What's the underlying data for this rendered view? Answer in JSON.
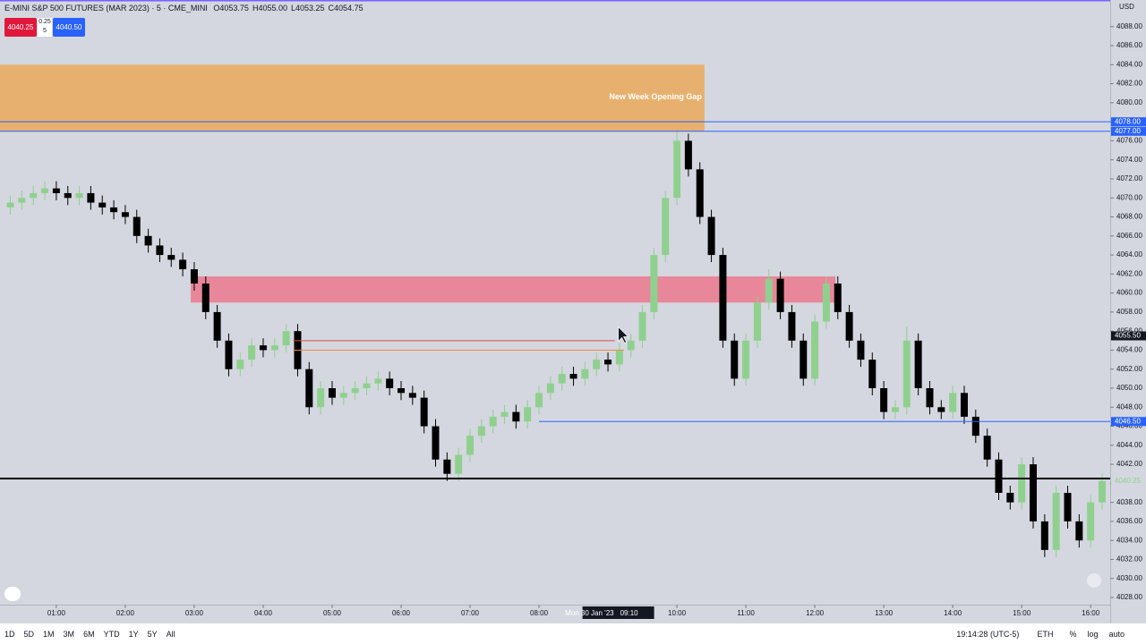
{
  "header": {
    "symbol": "E-MINI S&P 500 FUTURES (MAR 2023) · 5 · CME_MINI",
    "ohlc": [
      "O4053.75",
      "H4055.00",
      "L4053.25",
      "C4054.75"
    ],
    "currency": "USD"
  },
  "trade": {
    "sell": "4040.25",
    "spread": "0.25",
    "qty": "5",
    "buy": "4040.50"
  },
  "chart_data": {
    "type": "candlestick",
    "up_color": "#8fd08f",
    "down_color": "#000000",
    "xlim": [
      11,
      977
    ],
    "ylim": [
      27.25,
      90.8
    ],
    "ylim_offset": 4000,
    "xticks": [
      {
        "value": 60,
        "label": "01:00"
      },
      {
        "value": 120,
        "label": "02:00"
      },
      {
        "value": 180,
        "label": "03:00"
      },
      {
        "value": 240,
        "label": "04:00"
      },
      {
        "value": 300,
        "label": "05:00"
      },
      {
        "value": 360,
        "label": "06:00"
      },
      {
        "value": 420,
        "label": "07:00"
      },
      {
        "value": 480,
        "label": "08:00"
      },
      {
        "value": 600,
        "label": "10:00"
      },
      {
        "value": 660,
        "label": "11:00"
      },
      {
        "value": 720,
        "label": "12:00"
      },
      {
        "value": 780,
        "label": "13:00"
      },
      {
        "value": 840,
        "label": "14:00"
      },
      {
        "value": 900,
        "label": "15:00"
      },
      {
        "value": 960,
        "label": "16:00"
      }
    ],
    "yticks": [
      {
        "value": 4028,
        "label": "4028.00"
      },
      {
        "value": 4030,
        "label": "4030.00"
      },
      {
        "value": 4032,
        "label": "4032.00"
      },
      {
        "value": 4034,
        "label": "4034.00"
      },
      {
        "value": 4036,
        "label": "4036.00"
      },
      {
        "value": 4038,
        "label": "4038.00"
      },
      {
        "value": 4040,
        "label": "4040.00"
      },
      {
        "value": 4042,
        "label": "4042.00"
      },
      {
        "value": 4044,
        "label": "4044.00"
      },
      {
        "value": 4046,
        "label": "4046.00"
      },
      {
        "value": 4048,
        "label": "4048.00"
      },
      {
        "value": 4050,
        "label": "4050.00"
      },
      {
        "value": 4052,
        "label": "4052.00"
      },
      {
        "value": 4054,
        "label": "4054.00"
      },
      {
        "value": 4056,
        "label": "4056.00"
      },
      {
        "value": 4058,
        "label": "4058.00"
      },
      {
        "value": 4060,
        "label": "4060.00"
      },
      {
        "value": 4062,
        "label": "4062.00"
      },
      {
        "value": 4064,
        "label": "4064.00"
      },
      {
        "value": 4066,
        "label": "4066.00"
      },
      {
        "value": 4068,
        "label": "4068.00"
      },
      {
        "value": 4070,
        "label": "4070.00"
      },
      {
        "value": 4072,
        "label": "4072.00"
      },
      {
        "value": 4074,
        "label": "4074.00"
      },
      {
        "value": 4076,
        "label": "4076.00"
      },
      {
        "value": 4078,
        "label": "4078.00"
      },
      {
        "value": 4080,
        "label": "4080.00"
      },
      {
        "value": 4082,
        "label": "4082.00"
      },
      {
        "value": 4084,
        "label": "4084.00"
      },
      {
        "value": 4086,
        "label": "4086.00"
      },
      {
        "value": 4088,
        "label": "4088.00"
      }
    ],
    "zones": [
      {
        "top": 4084,
        "bottom": 4077,
        "from": 11,
        "to": 624,
        "color": "#e8b06e",
        "label": "New Week Opening Gap"
      },
      {
        "top": 4061.75,
        "bottom": 4059,
        "from": 177,
        "to": 738,
        "color": "#e8879a"
      }
    ],
    "hlines": [
      {
        "value": 4078,
        "label": "4078.00",
        "color": "#2962ff",
        "from": 11,
        "to": 977
      },
      {
        "value": 4077,
        "label": "4077.00",
        "color": "#2962ff",
        "from": 11,
        "to": 977
      },
      {
        "value": 4046.5,
        "label": "4046.50",
        "color": "#2962ff",
        "from": 480,
        "to": 977
      },
      {
        "value": 4055,
        "color": "#e0503a",
        "from": 266,
        "to": 546
      },
      {
        "value": 4054,
        "color": "#f08a3c",
        "from": 266,
        "to": 554
      },
      {
        "value": 4040.5,
        "color": "#000000",
        "from": 11,
        "to": 977,
        "width": 2
      }
    ],
    "last_price": {
      "value": 4040.25,
      "label": "4040.25"
    },
    "crosshair": {
      "price": {
        "value": 4055.5,
        "label": "4055.50"
      },
      "time": {
        "value": 549,
        "label": "09:10",
        "date": "Mon 30 Jan '23"
      }
    },
    "candles": [
      [
        20,
        4069,
        4070.25,
        4068.25,
        4069.5
      ],
      [
        30,
        4069.5,
        4070.75,
        4068.75,
        4070
      ],
      [
        40,
        4070,
        4071.25,
        4069.25,
        4070.5
      ],
      [
        50,
        4070.5,
        4071.75,
        4069.75,
        4071
      ],
      [
        60,
        4071,
        4071.75,
        4069.75,
        4070.5
      ],
      [
        70,
        4070.5,
        4071.25,
        4069.25,
        4070
      ],
      [
        80,
        4070,
        4071.25,
        4069.25,
        4070.5
      ],
      [
        90,
        4070.5,
        4071.25,
        4068.75,
        4069.5
      ],
      [
        100,
        4069.5,
        4070.25,
        4068.25,
        4069
      ],
      [
        110,
        4069,
        4069.75,
        4067.75,
        4068.5
      ],
      [
        120,
        4068.5,
        4069.25,
        4067.25,
        4068
      ],
      [
        130,
        4068,
        4068.75,
        4065.25,
        4066
      ],
      [
        140,
        4066,
        4066.75,
        4064.25,
        4065
      ],
      [
        150,
        4065,
        4065.75,
        4063.25,
        4064
      ],
      [
        160,
        4064,
        4064.75,
        4062.75,
        4063.5
      ],
      [
        170,
        4063.5,
        4064.25,
        4061.75,
        4062.5
      ],
      [
        180,
        4062.5,
        4063.25,
        4060.25,
        4061
      ],
      [
        190,
        4061,
        4061.75,
        4057.25,
        4058
      ],
      [
        200,
        4058,
        4058.75,
        4054.25,
        4055
      ],
      [
        210,
        4055,
        4055.75,
        4051.25,
        4052
      ],
      [
        220,
        4052,
        4053.75,
        4051.25,
        4053
      ],
      [
        230,
        4053,
        4055.25,
        4052.25,
        4054.5
      ],
      [
        240,
        4054.5,
        4055.25,
        4053.25,
        4054
      ],
      [
        250,
        4054,
        4055.25,
        4053.25,
        4054.5
      ],
      [
        260,
        4054.5,
        4056.75,
        4053.75,
        4056
      ],
      [
        270,
        4056,
        4056.75,
        4051.25,
        4052
      ],
      [
        280,
        4052,
        4052.75,
        4047.25,
        4048
      ],
      [
        290,
        4048,
        4050.75,
        4047.25,
        4050
      ],
      [
        300,
        4050,
        4050.75,
        4048.25,
        4049
      ],
      [
        310,
        4049,
        4050.25,
        4048.25,
        4049.5
      ],
      [
        320,
        4049.5,
        4050.75,
        4048.75,
        4050
      ],
      [
        330,
        4050,
        4051.25,
        4049.25,
        4050.5
      ],
      [
        340,
        4050.5,
        4051.75,
        4049.75,
        4051
      ],
      [
        350,
        4051,
        4051.75,
        4049.25,
        4050
      ],
      [
        360,
        4050,
        4050.75,
        4048.75,
        4049.5
      ],
      [
        370,
        4049.5,
        4050.25,
        4048.25,
        4049
      ],
      [
        380,
        4049,
        4049.75,
        4045.25,
        4046
      ],
      [
        390,
        4046,
        4046.75,
        4041.75,
        4042.5
      ],
      [
        400,
        4042.5,
        4043.25,
        4040.25,
        4041
      ],
      [
        410,
        4041,
        4043.75,
        4040.25,
        4043
      ],
      [
        420,
        4043,
        4045.75,
        4042.25,
        4045
      ],
      [
        430,
        4045,
        4046.75,
        4044.25,
        4046
      ],
      [
        440,
        4046,
        4047.75,
        4045.25,
        4047
      ],
      [
        450,
        4047,
        4048.25,
        4046.25,
        4047.5
      ],
      [
        460,
        4047.5,
        4048.25,
        4045.75,
        4046.5
      ],
      [
        470,
        4046.5,
        4048.75,
        4045.75,
        4048
      ],
      [
        480,
        4048,
        4050.25,
        4047.25,
        4049.5
      ],
      [
        490,
        4049.5,
        4051.25,
        4048.75,
        4050.5
      ],
      [
        500,
        4050.5,
        4052.25,
        4049.75,
        4051.5
      ],
      [
        510,
        4051.5,
        4052.25,
        4050.25,
        4051
      ],
      [
        520,
        4051,
        4052.75,
        4050.25,
        4052
      ],
      [
        530,
        4052,
        4053.75,
        4051.25,
        4053
      ],
      [
        540,
        4053,
        4053.75,
        4051.75,
        4052.5
      ],
      [
        550,
        4052.5,
        4054.75,
        4051.75,
        4054
      ],
      [
        560,
        4054,
        4055.75,
        4053.25,
        4055
      ],
      [
        570,
        4055,
        4058.75,
        4054.25,
        4058
      ],
      [
        580,
        4058,
        4064.75,
        4057.25,
        4064
      ],
      [
        590,
        4064,
        4070.75,
        4063.25,
        4070
      ],
      [
        600,
        4070,
        4077,
        4069.25,
        4076
      ],
      [
        610,
        4076,
        4076.75,
        4072.25,
        4073
      ],
      [
        620,
        4073,
        4073.75,
        4067.25,
        4068
      ],
      [
        630,
        4068,
        4068.75,
        4063.25,
        4064
      ],
      [
        640,
        4064,
        4064.75,
        4054.25,
        4055
      ],
      [
        650,
        4055,
        4055.75,
        4050.25,
        4051
      ],
      [
        660,
        4051,
        4055.75,
        4050.25,
        4055
      ],
      [
        670,
        4055,
        4059.75,
        4054.25,
        4059
      ],
      [
        680,
        4059,
        4062.5,
        4058.25,
        4061.5
      ],
      [
        690,
        4061.5,
        4062.25,
        4057.25,
        4058
      ],
      [
        700,
        4058,
        4058.75,
        4054.25,
        4055
      ],
      [
        710,
        4055,
        4055.75,
        4050.25,
        4051
      ],
      [
        720,
        4051,
        4057.75,
        4050.25,
        4057
      ],
      [
        730,
        4057,
        4061.75,
        4056.25,
        4061
      ],
      [
        740,
        4061,
        4061.75,
        4057.25,
        4058
      ],
      [
        750,
        4058,
        4058.75,
        4054.25,
        4055
      ],
      [
        760,
        4055,
        4055.75,
        4052.25,
        4053
      ],
      [
        770,
        4053,
        4053.75,
        4049.25,
        4050
      ],
      [
        780,
        4050,
        4050.75,
        4046.75,
        4047.5
      ],
      [
        790,
        4047.5,
        4048.75,
        4046.75,
        4048
      ],
      [
        800,
        4048,
        4056.5,
        4047.25,
        4055
      ],
      [
        810,
        4055,
        4055.75,
        4049.25,
        4050
      ],
      [
        820,
        4050,
        4050.75,
        4047.25,
        4048
      ],
      [
        830,
        4048,
        4048.75,
        4046.75,
        4047.5
      ],
      [
        840,
        4047.5,
        4050.25,
        4046.75,
        4049.5
      ],
      [
        850,
        4049.5,
        4050.25,
        4046.25,
        4047
      ],
      [
        860,
        4047,
        4047.75,
        4044.25,
        4045
      ],
      [
        870,
        4045,
        4045.75,
        4041.75,
        4042.5
      ],
      [
        880,
        4042.5,
        4043.25,
        4038.25,
        4039
      ],
      [
        890,
        4039,
        4039.75,
        4037.25,
        4038
      ],
      [
        900,
        4038,
        4042.75,
        4037.25,
        4042
      ],
      [
        910,
        4042,
        4042.75,
        4035.25,
        4036
      ],
      [
        920,
        4036,
        4036.75,
        4032.25,
        4033
      ],
      [
        930,
        4033,
        4039.75,
        4032.25,
        4039
      ],
      [
        940,
        4039,
        4039.75,
        4035.25,
        4036
      ],
      [
        950,
        4036,
        4036.75,
        4033.25,
        4034
      ],
      [
        960,
        4034,
        4038.75,
        4033.25,
        4038
      ],
      [
        970,
        4038,
        4041,
        4037.25,
        4040.25
      ]
    ]
  },
  "toolbar": {
    "ranges": [
      "1D",
      "5D",
      "1M",
      "3M",
      "6M",
      "YTD",
      "1Y",
      "5Y",
      "All"
    ],
    "clock": "19:14:28 (UTC-5)",
    "session": "ETH",
    "options": [
      "%",
      "log",
      "auto"
    ]
  }
}
